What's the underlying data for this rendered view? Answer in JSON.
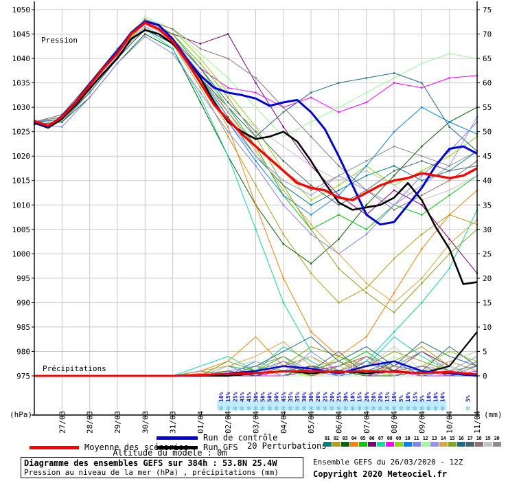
{
  "chart": {
    "pressure_label": "Pression",
    "precip_label": "Précipitations",
    "left_unit": "(hPa)",
    "right_unit": "(mm)"
  },
  "legend": {
    "mean_label": "Moyenne des scénarios",
    "control_label": "Run de contrôle",
    "gfs_label": "Run GFS",
    "perturbations_label": "20 Perturbations",
    "altitude_label": "Altitude du modele : 0m",
    "mean_color": "#ff0000",
    "control_color": "#0000dd",
    "gfs_color": "#000000"
  },
  "footer": {
    "title": "Diagramme des ensembles GEFS sur 384h : 53.8N 25.4W",
    "subtitle": "Pression au niveau de la mer (hPa) , précipitations (mm)",
    "run_info": "Ensemble GEFS du 26/03/2020 - 12Z",
    "copyright": "Copyright 2020 Meteociel.fr"
  },
  "chart_data": {
    "type": "line",
    "title": "Diagramme des ensembles GEFS sur 384h : 53.8N 25.4W",
    "x_unit": "hours since 26/03/2020 12Z",
    "pressure_axis": {
      "label": "(hPa)",
      "min": 975,
      "max": 1050,
      "ticks": [
        1050,
        1045,
        1040,
        1035,
        1030,
        1025,
        1020,
        1015,
        1010,
        1005,
        1000,
        995,
        990,
        985,
        980,
        975
      ]
    },
    "precip_axis": {
      "label": "(mm)",
      "min": 0,
      "max": 75,
      "ticks": [
        75,
        70,
        65,
        60,
        55,
        50,
        45,
        40,
        35,
        30,
        25,
        20,
        15,
        10,
        5,
        0
      ]
    },
    "x_ticks": {
      "labels": [
        "27/03",
        "28/03",
        "29/03",
        "30/03",
        "31/03",
        "01/04",
        "02/04",
        "03/04",
        "04/04",
        "05/04",
        "06/04",
        "07/04",
        "08/04",
        "09/04",
        "10/04",
        "11/04"
      ],
      "hours": [
        24,
        48,
        72,
        96,
        120,
        144,
        168,
        192,
        216,
        240,
        264,
        288,
        312,
        336,
        360,
        384
      ]
    },
    "main_time_hours": [
      0,
      12,
      24,
      36,
      48,
      60,
      72,
      84,
      96,
      108,
      120,
      132,
      144,
      156,
      168,
      180,
      192,
      204,
      216,
      228,
      240,
      252,
      264,
      276,
      288,
      300,
      312,
      324,
      336,
      348,
      360,
      372,
      384
    ],
    "member_time_hours": [
      0,
      24,
      48,
      72,
      96,
      120,
      144,
      168,
      192,
      216,
      240,
      264,
      288,
      312,
      336,
      360,
      384
    ],
    "mean": {
      "name": "Moyenne des scénarios",
      "color": "#ff0000",
      "pressure": [
        1027.2,
        1026.2,
        1028,
        1031,
        1034.5,
        1038,
        1041,
        1045,
        1047.3,
        1046,
        1043.5,
        1039.5,
        1035,
        1030.5,
        1027.5,
        1024.5,
        1022,
        1019.5,
        1017,
        1014.5,
        1013.5,
        1013,
        1011.5,
        1011,
        1012.5,
        1014,
        1015,
        1015.5,
        1016.5,
        1016,
        1015.5,
        1016,
        1017.5
      ],
      "precip": [
        0,
        0,
        0,
        0,
        0,
        0,
        0.2,
        0.4,
        0.6,
        0.9,
        1.0,
        0.8,
        1.0,
        0.8,
        0.6,
        0.8,
        0.3
      ]
    },
    "control": {
      "name": "Run de contrôle",
      "color": "#0000dd",
      "pressure": [
        1027,
        1026,
        1028.2,
        1031.2,
        1034.8,
        1038.2,
        1041.5,
        1045.3,
        1047.6,
        1046.8,
        1044,
        1040,
        1036.5,
        1034,
        1033,
        1032.5,
        1031.8,
        1030.3,
        1031,
        1031.5,
        1029,
        1025.5,
        1020,
        1014,
        1008,
        1006,
        1006.5,
        1010,
        1013.5,
        1018,
        1021.5,
        1022,
        1020.5
      ],
      "precip": [
        0,
        0,
        0,
        0,
        0,
        0,
        0,
        0.5,
        1,
        2,
        1.5,
        0.5,
        2,
        3,
        1,
        0.5,
        0
      ]
    },
    "gfs": {
      "name": "Run GFS",
      "color": "#000000",
      "pressure": [
        1026.8,
        1025.8,
        1027.6,
        1030.5,
        1033.8,
        1037,
        1040,
        1044,
        1045.8,
        1045,
        1043,
        1040,
        1036,
        1031,
        1027,
        1025,
        1023.5,
        1024,
        1025,
        1023,
        1019,
        1014.5,
        1010.5,
        1009,
        1009.5,
        1010,
        1011.5,
        1014.5,
        1011,
        1005.5,
        1001,
        993.8,
        994.2
      ],
      "precip": [
        0,
        0,
        0,
        0,
        0,
        0,
        0,
        0,
        0.5,
        1,
        0.5,
        1,
        0.5,
        1,
        0.5,
        2,
        9
      ]
    },
    "members": [
      {
        "id": "01",
        "color": "#008080",
        "pressure": [
          1027,
          1028,
          1034,
          1041,
          1047,
          1044,
          1036,
          1028,
          1020,
          1014,
          1010,
          1013,
          1016,
          1018,
          1015,
          1017,
          1021
        ],
        "precip": [
          0,
          0,
          0,
          0,
          0,
          0,
          0,
          1,
          2,
          0,
          1,
          3,
          0,
          2,
          1,
          0,
          0
        ]
      },
      {
        "id": "02",
        "color": "#b3a00c",
        "pressure": [
          1027,
          1028,
          1033,
          1040,
          1046,
          1043,
          1034,
          1024,
          1014,
          1004,
          996,
          990,
          993,
          999,
          1004,
          1008,
          1006
        ],
        "precip": [
          0,
          0,
          0,
          0,
          0,
          0,
          0.5,
          1,
          0,
          2,
          4,
          1,
          0,
          3,
          6,
          2,
          0
        ]
      },
      {
        "id": "03",
        "color": "#006400",
        "pressure": [
          1026.5,
          1027,
          1032,
          1039,
          1045,
          1042,
          1031,
          1020,
          1010,
          1002,
          998,
          1003,
          1010,
          1016,
          1022,
          1027,
          1030
        ],
        "precip": [
          0,
          0,
          0,
          0,
          0,
          0,
          0,
          0,
          1,
          0,
          2,
          1,
          0,
          0,
          1,
          0,
          2
        ]
      },
      {
        "id": "04",
        "color": "#ff8000",
        "pressure": [
          1027,
          1028,
          1033,
          1040,
          1046,
          1043,
          1035,
          1026,
          1010,
          995,
          984,
          979,
          983,
          992,
          1001,
          1008,
          1013
        ],
        "precip": [
          0,
          0,
          0,
          0,
          0,
          0,
          1,
          3,
          8,
          2,
          0,
          1,
          4,
          0,
          2,
          1,
          0
        ]
      },
      {
        "id": "05",
        "color": "#00cc00",
        "pressure": [
          1027,
          1028.5,
          1035,
          1042,
          1048,
          1045,
          1038,
          1030,
          1022,
          1012,
          1005,
          1008,
          1005,
          1010,
          1008,
          1012,
          1016
        ],
        "precip": [
          0,
          0,
          0,
          0,
          0,
          0,
          0,
          2,
          1,
          4,
          0,
          2,
          5,
          1,
          0,
          3,
          1
        ]
      },
      {
        "id": "06",
        "color": "#7d007d",
        "pressure": [
          1027,
          1028,
          1034,
          1041,
          1047,
          1045,
          1043,
          1045,
          1035,
          1026,
          1018,
          1012,
          1008,
          1013,
          1010,
          1003,
          996
        ],
        "precip": [
          0,
          0,
          0,
          0,
          0,
          0,
          0,
          0,
          0,
          1,
          2,
          0,
          3,
          1,
          5,
          2,
          0
        ]
      },
      {
        "id": "07",
        "color": "#00e09b",
        "pressure": [
          1027,
          1027.5,
          1033,
          1040,
          1046,
          1042,
          1032,
          1020,
          1005,
          990,
          980,
          976,
          978,
          984,
          990,
          997,
          1009
        ],
        "precip": [
          0,
          0,
          0,
          0,
          0,
          0,
          2,
          4,
          1,
          6,
          3,
          0,
          2,
          8,
          4,
          1,
          2
        ]
      },
      {
        "id": "08",
        "color": "#ff00ff",
        "pressure": [
          1027,
          1028,
          1034,
          1041,
          1047,
          1044,
          1038,
          1034,
          1033,
          1030,
          1032,
          1029,
          1031,
          1035,
          1034,
          1036,
          1036.5
        ],
        "precip": [
          0,
          0,
          0,
          0,
          0,
          0,
          0,
          1,
          0,
          0,
          1,
          2,
          0,
          1,
          0,
          0,
          1
        ]
      },
      {
        "id": "09",
        "color": "#84e000",
        "pressure": [
          1027,
          1028,
          1034,
          1041,
          1048,
          1046,
          1040,
          1033,
          1026,
          1017,
          1011,
          1014,
          1018,
          1014,
          1017,
          1020,
          1024
        ],
        "precip": [
          0,
          0,
          0,
          0,
          0,
          0,
          0,
          0,
          2,
          1,
          0,
          4,
          1,
          0,
          2,
          5,
          3
        ]
      },
      {
        "id": "10",
        "color": "#0084ff",
        "pressure": [
          1027,
          1027.5,
          1033,
          1040,
          1046,
          1043,
          1036,
          1027,
          1019,
          1012,
          1008,
          1012,
          1018,
          1025,
          1030,
          1027,
          1024.5
        ],
        "precip": [
          0,
          0,
          0,
          0,
          0,
          0,
          1,
          0,
          3,
          1,
          2,
          0,
          1,
          3,
          0,
          1,
          0
        ]
      },
      {
        "id": "11",
        "color": "#8080ff",
        "pressure": [
          1026.5,
          1026,
          1032,
          1039,
          1044.5,
          1041,
          1033,
          1025,
          1018,
          1010,
          1004,
          1000,
          1004,
          1010,
          1016,
          1021,
          1027
        ],
        "precip": [
          0,
          0,
          0,
          0,
          0,
          0,
          0,
          2,
          0,
          3,
          1,
          0,
          4,
          2,
          1,
          0,
          2
        ]
      },
      {
        "id": "12",
        "color": "#98fb98",
        "pressure": [
          1027,
          1028,
          1034.5,
          1042,
          1048.5,
          1046,
          1041,
          1036,
          1030,
          1024,
          1027,
          1030,
          1033,
          1036,
          1039,
          1041,
          1040
        ],
        "precip": [
          0,
          0,
          0,
          0,
          0,
          0,
          0,
          0,
          1,
          0,
          0,
          2,
          0,
          4,
          1,
          2,
          0
        ]
      },
      {
        "id": "13",
        "color": "#9491f2",
        "pressure": [
          1027,
          1027,
          1033,
          1040,
          1046,
          1043,
          1035,
          1027,
          1020,
          1015,
          1012,
          1016,
          1013,
          1010,
          1014,
          1018,
          1028
        ],
        "precip": [
          0,
          0,
          0,
          0,
          0,
          0,
          0,
          1,
          2,
          0,
          5,
          1,
          3,
          0,
          2,
          1,
          4
        ]
      },
      {
        "id": "14",
        "color": "#d8a63c",
        "pressure": [
          1027,
          1028,
          1033,
          1040,
          1046,
          1044,
          1037,
          1029,
          1021,
          1013,
          1006,
          1000,
          994,
          990,
          995,
          1002,
          1007
        ],
        "precip": [
          0,
          0,
          0,
          0,
          0,
          0,
          1,
          2,
          4,
          7,
          2,
          3,
          1,
          2,
          0,
          3,
          1
        ]
      },
      {
        "id": "15",
        "color": "#85a813",
        "pressure": [
          1027,
          1028,
          1034,
          1041,
          1047.5,
          1045,
          1039,
          1032,
          1024,
          1014,
          1005,
          997,
          992,
          988,
          994,
          1000,
          1005
        ],
        "precip": [
          0,
          0,
          0,
          0,
          0,
          0,
          0,
          3,
          1,
          2,
          6,
          4,
          2,
          5,
          3,
          1,
          0
        ]
      },
      {
        "id": "16",
        "color": "#1c6c86",
        "pressure": [
          1026.5,
          1027,
          1033,
          1040,
          1046,
          1043,
          1036,
          1030,
          1024,
          1029,
          1033,
          1035,
          1036,
          1037,
          1035,
          1026,
          1021
        ],
        "precip": [
          0,
          0,
          0,
          0,
          0,
          0,
          0,
          0,
          2,
          5,
          8,
          3,
          6,
          2,
          7,
          4,
          2
        ]
      },
      {
        "id": "17",
        "color": "#46646e",
        "pressure": [
          1027,
          1028,
          1034,
          1041,
          1047,
          1044,
          1038,
          1031,
          1025,
          1019,
          1014,
          1010,
          1013,
          1017,
          1019,
          1017,
          1018
        ],
        "precip": [
          0,
          0,
          0,
          0,
          0,
          0,
          0,
          1,
          0,
          2,
          1,
          5,
          0,
          3,
          1,
          6,
          2
        ]
      },
      {
        "id": "18",
        "color": "#8a7272",
        "pressure": [
          1027,
          1028.5,
          1035,
          1042,
          1048,
          1046,
          1042,
          1040,
          1036,
          1030,
          1024,
          1018,
          1013,
          1009,
          1012,
          1015,
          1019
        ],
        "precip": [
          0,
          0,
          0,
          0,
          0,
          0,
          0,
          0,
          1,
          3,
          0,
          2,
          4,
          1,
          2,
          0,
          3
        ]
      },
      {
        "id": "19",
        "color": "#c4c4c4",
        "pressure": [
          1027,
          1028,
          1034,
          1041,
          1047,
          1044,
          1037,
          1030,
          1026,
          1022,
          1018,
          1015,
          1017,
          1014,
          1011,
          1013,
          1016
        ],
        "precip": [
          0,
          0,
          0,
          0,
          0,
          0,
          0,
          2,
          3,
          1,
          4,
          0,
          2,
          6,
          1,
          3,
          5
        ]
      },
      {
        "id": "20",
        "color": "#8c8c8c",
        "pressure": [
          1027,
          1028,
          1033.5,
          1040.5,
          1046.5,
          1043.5,
          1036,
          1029,
          1022,
          1017,
          1013,
          1016,
          1019,
          1022,
          1020,
          1018,
          1021
        ],
        "precip": [
          0,
          0,
          0,
          0,
          0,
          0,
          1,
          0,
          2,
          4,
          1,
          3,
          0,
          2,
          5,
          1,
          2
        ]
      }
    ],
    "snow_symbols": {
      "symbol": "❄",
      "label_color": "#1414cc",
      "flake_color": "#5cb8e4",
      "band_color": "#c2ecfa",
      "start_hour": 162,
      "step_hours": 6,
      "probabilities_percent": [
        10,
        15,
        25,
        45,
        45,
        50,
        50,
        50,
        50,
        45,
        35,
        35,
        30,
        30,
        20,
        25,
        20,
        25,
        30,
        10,
        15,
        20,
        20,
        20,
        15,
        10,
        5,
        10,
        15,
        5,
        10,
        10,
        10
      ],
      "isolated": {
        "hour": 376,
        "percent": 5
      }
    }
  }
}
